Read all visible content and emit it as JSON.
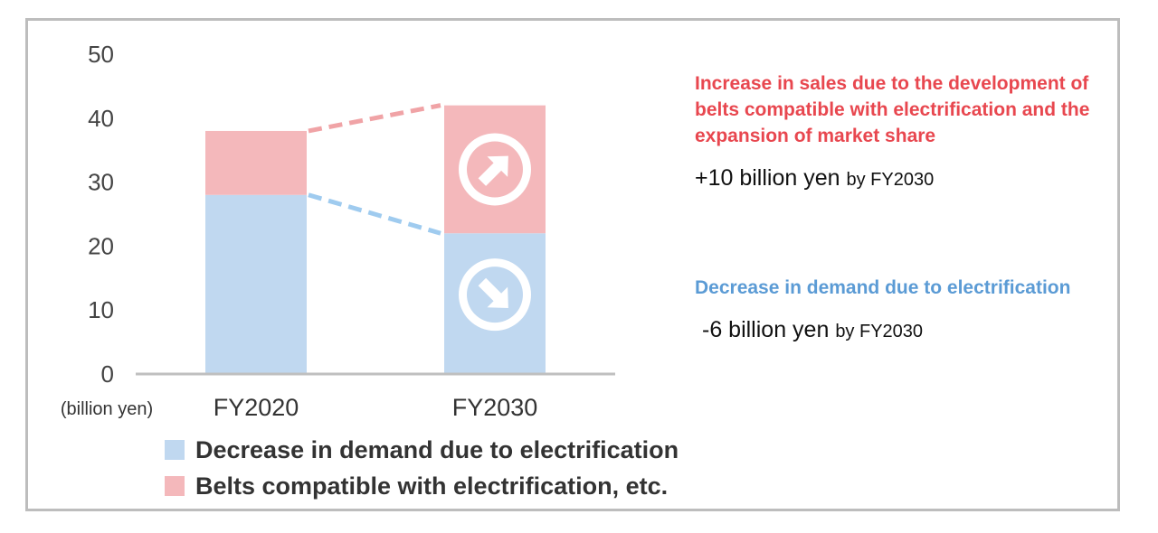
{
  "chart_data": {
    "type": "bar",
    "stacked": true,
    "categories": [
      "FY2020",
      "FY2030"
    ],
    "series": [
      {
        "name": "Decrease in demand due to electrification",
        "color": "#c0d8f0",
        "values": [
          28,
          22
        ]
      },
      {
        "name": "Belts compatible with electrification, etc.",
        "color": "#f4b8bb",
        "values": [
          10,
          20
        ]
      }
    ],
    "ylim": [
      0,
      50
    ],
    "yticks": [
      0,
      10,
      20,
      30,
      40,
      50
    ],
    "yunit": "(billion yen)",
    "connector_colors": {
      "top": "#f0a3a6",
      "bottom": "#9fcbef"
    },
    "icons": [
      {
        "category": "FY2030",
        "series": 1,
        "name": "arrow-up-right-icon"
      },
      {
        "category": "FY2030",
        "series": 0,
        "name": "arrow-down-right-icon"
      }
    ]
  },
  "annotations": {
    "increase": {
      "title": "Increase in sales due to the development of belts compatible with electrification and the expansion of market share",
      "color": "#e8474f",
      "value": "+10 billion yen",
      "suffix": "by FY2030"
    },
    "decrease": {
      "title": "Decrease in demand due to electrification",
      "color": "#5b9bd5",
      "value": "-6 billion yen",
      "suffix": "by FY2030"
    }
  }
}
